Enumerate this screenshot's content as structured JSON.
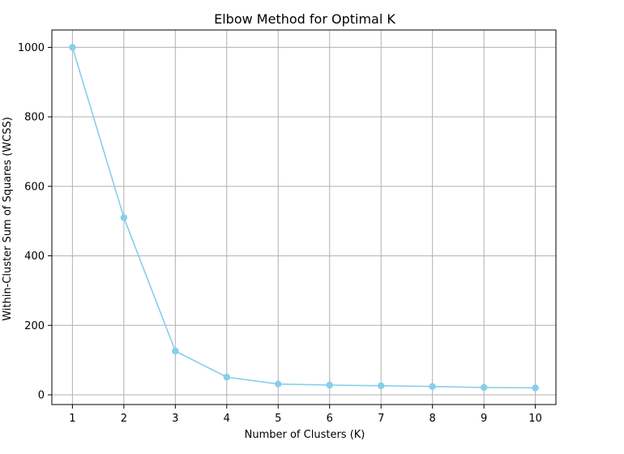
{
  "chart_data": {
    "type": "line",
    "title": "Elbow Method for Optimal K",
    "xlabel": "Number of Clusters (K)",
    "ylabel": "Within-Cluster Sum of Squares (WCSS)",
    "x": [
      1,
      2,
      3,
      4,
      5,
      6,
      7,
      8,
      9,
      10
    ],
    "series": [
      {
        "values": [
          1000,
          510,
          126,
          51,
          31,
          28,
          26,
          24,
          21,
          20
        ]
      }
    ],
    "xlim": [
      0.6,
      10.4
    ],
    "ylim": [
      -28,
      1050
    ],
    "xticks": [
      "1",
      "2",
      "3",
      "4",
      "5",
      "6",
      "7",
      "8",
      "9",
      "10"
    ],
    "yticks": [
      "0",
      "200",
      "400",
      "600",
      "800",
      "1000"
    ],
    "grid": true,
    "marker": "circle",
    "line_color": "#87ceeb"
  }
}
